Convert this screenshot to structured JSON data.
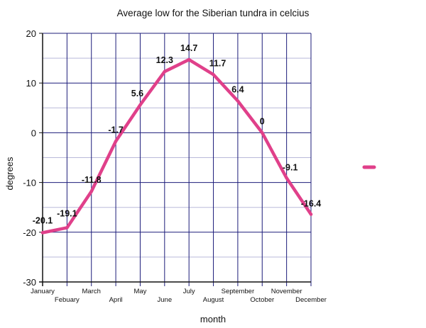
{
  "chart_data": {
    "type": "line",
    "title": "Average low for the Siberian tundra in celcius",
    "xlabel": "month",
    "ylabel": "degrees",
    "categories": [
      "January",
      "Febuary",
      "March",
      "April",
      "May",
      "June",
      "July",
      "August",
      "September",
      "October",
      "November",
      "December"
    ],
    "series": [
      {
        "values": [
          -20.1,
          -19.1,
          -11.8,
          -1.7,
          5.6,
          12.3,
          14.7,
          11.7,
          6.4,
          0,
          -9.1,
          -16.4
        ],
        "data_labels": [
          "-20.1",
          "-19.1",
          "-11.8",
          "-1.7",
          "5.6",
          "12.3",
          "14.7",
          "11.7",
          "6.4",
          "0",
          "-9.1",
          "-16.4"
        ]
      }
    ],
    "ylim": [
      -30,
      20
    ],
    "yticks": [
      {
        "value": 20,
        "label": "20"
      },
      {
        "value": 10,
        "label": "10"
      },
      {
        "value": 0,
        "label": "0"
      },
      {
        "value": -10,
        "label": "-10"
      },
      {
        "value": -20,
        "label": "-20"
      },
      {
        "value": -30,
        "label": "-30"
      }
    ],
    "grid": true,
    "legend": "right",
    "colors": {
      "line": "#e0408a",
      "grid_major": "#1c1c7a",
      "grid_minor": "#b9b9d9",
      "axis": "#111111"
    }
  }
}
